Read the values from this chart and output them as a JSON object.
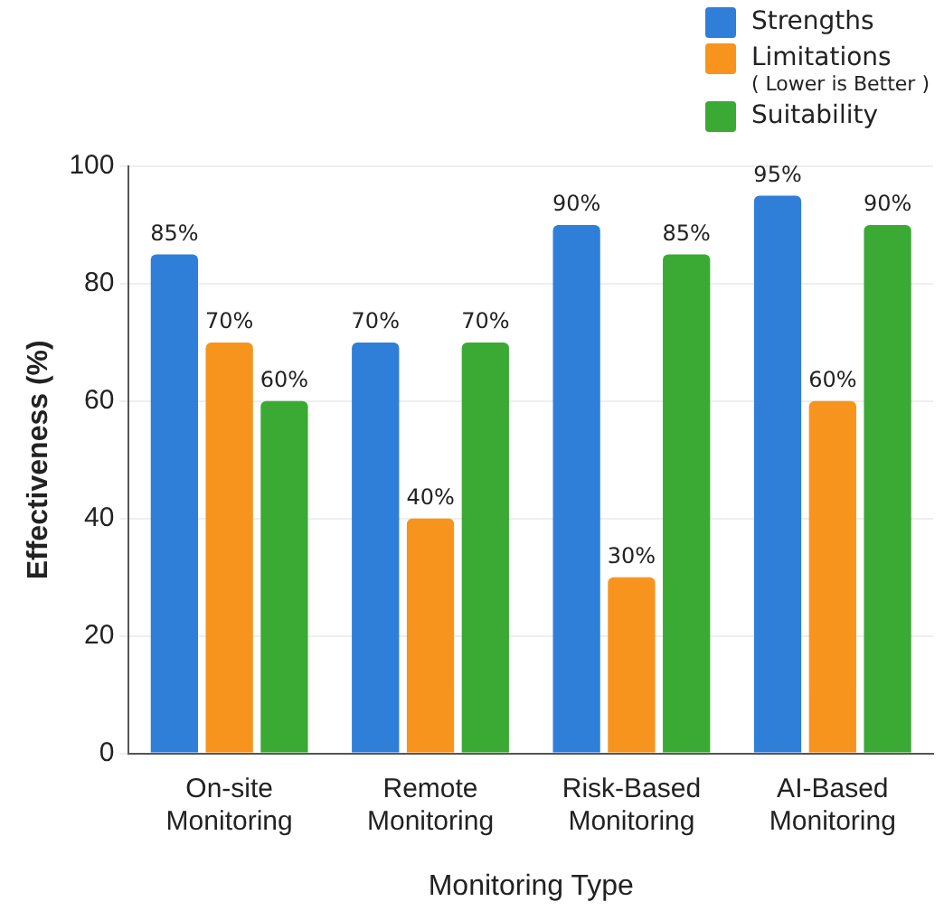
{
  "chart_data": {
    "type": "bar",
    "xlabel": "Monitoring Type",
    "ylabel": "Effectiveness (%)",
    "categories": [
      "On-site Monitoring",
      "Remote Monitoring",
      "Risk-Based Monitoring",
      "AI-Based Monitoring"
    ],
    "series": [
      {
        "name": "Strengths",
        "color": "#2f7ed8",
        "values": [
          85,
          70,
          90,
          95
        ],
        "value_labels": [
          "85%",
          "70%",
          "90%",
          "95%"
        ]
      },
      {
        "name": "Limitations",
        "color": "#f7941d",
        "values": [
          70,
          40,
          30,
          60
        ],
        "value_labels": [
          "70%",
          "40%",
          "30%",
          "60%"
        ]
      },
      {
        "name": "Suitability",
        "color": "#3aaa35",
        "values": [
          60,
          70,
          85,
          90
        ],
        "value_labels": [
          "60%",
          "70%",
          "85%",
          "90%"
        ]
      }
    ],
    "annotations": [
      "( Lower is Better )"
    ],
    "ylim": [
      0,
      100
    ],
    "yticks": [
      0,
      20,
      40,
      60,
      80,
      100
    ],
    "grid": "y",
    "legend": "top right"
  }
}
